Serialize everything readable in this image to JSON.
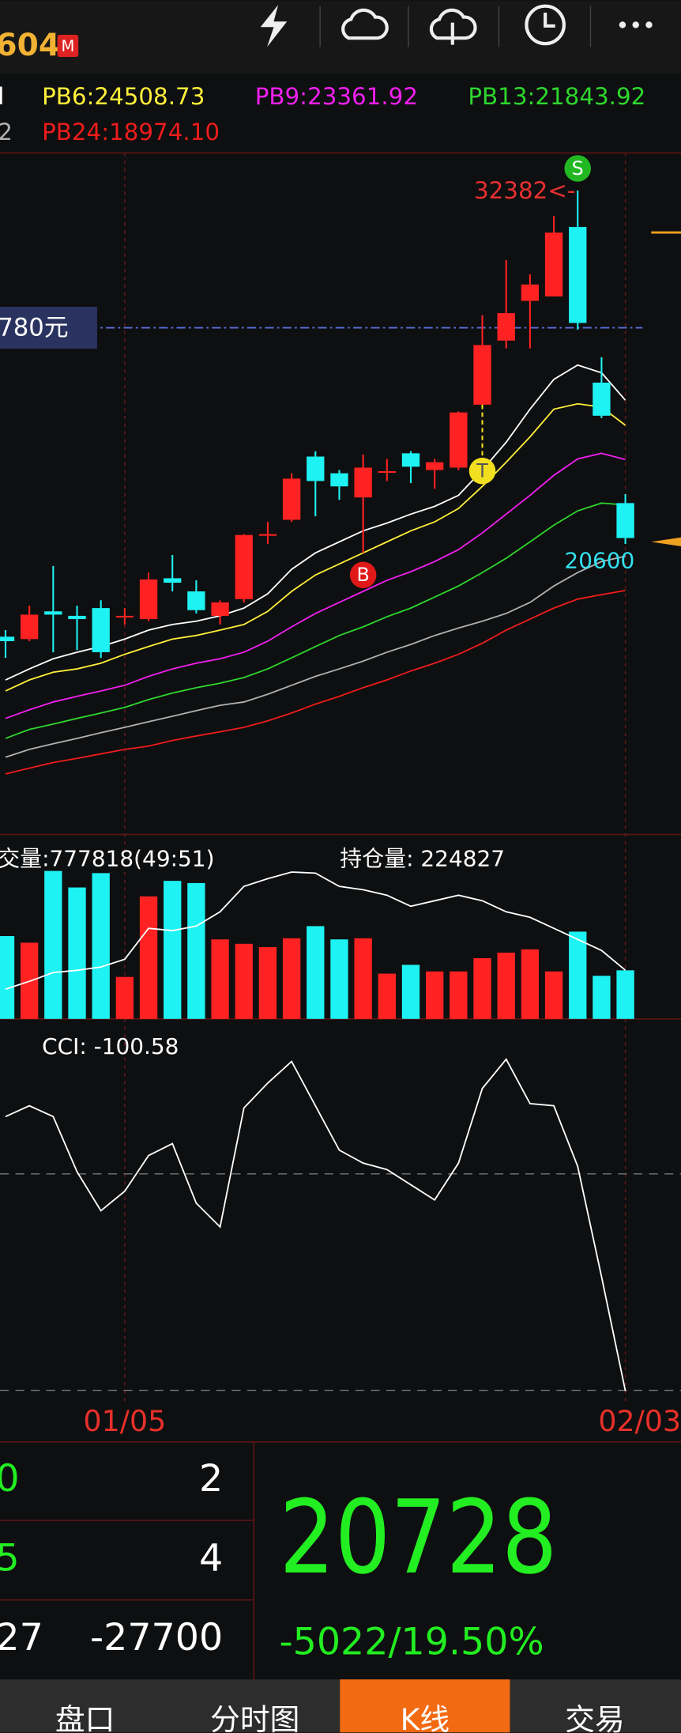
{
  "header": {
    "price_fragment": "604",
    "badge": "M"
  },
  "chart": {
    "categories": [
      null,
      null,
      null,
      null,
      null,
      "01/05",
      null,
      null,
      null,
      null,
      null,
      null,
      null,
      null,
      null,
      null,
      null,
      null,
      null,
      null,
      null,
      null,
      null,
      null,
      null,
      null,
      "02/03"
    ],
    "main": {
      "ylim": [
        10788,
        33641
      ],
      "candles": {
        "open": [
          17420,
          17340,
          18270,
          18120,
          18380,
          18100,
          18010,
          19380,
          18940,
          18120,
          18680,
          20840,
          21340,
          23460,
          22900,
          22090,
          22960,
          23570,
          23010,
          23090,
          25200,
          27350,
          28680,
          28830,
          31160,
          25940,
          21900
        ],
        "high": [
          17640,
          18460,
          19790,
          18460,
          18640,
          18380,
          19570,
          20160,
          19310,
          18640,
          20860,
          21270,
          22900,
          23640,
          23010,
          23530,
          23380,
          23640,
          23380,
          24970,
          28200,
          30050,
          29570,
          31530,
          32382,
          26790,
          22200
        ],
        "low": [
          16710,
          17270,
          16900,
          16970,
          16710,
          17830,
          17940,
          18940,
          18200,
          17830,
          18570,
          20530,
          21270,
          21460,
          22010,
          20230,
          22640,
          22570,
          22380,
          23010,
          25200,
          27090,
          27090,
          28830,
          27720,
          24750,
          20530
        ],
        "close": [
          17270,
          18160,
          18160,
          18010,
          16900,
          18120,
          19340,
          19230,
          18310,
          18570,
          20830,
          20860,
          22720,
          22640,
          22460,
          23090,
          22970,
          23120,
          23270,
          24940,
          27200,
          28270,
          29230,
          30970,
          27940,
          24830,
          20728
        ],
        "up_color": "#ff2222",
        "down_color": "#1ef2f2"
      },
      "lines": [
        {
          "label": "l",
          "color": "#ffffff",
          "values": [
            15970,
            16340,
            16680,
            16900,
            17090,
            17340,
            17640,
            17830,
            17940,
            18120,
            18380,
            18860,
            19680,
            20230,
            20600,
            20970,
            21230,
            21530,
            21790,
            22160,
            23010,
            23940,
            25050,
            26050,
            26530,
            26270,
            25350
          ]
        },
        {
          "label": "PB6:24508.73",
          "color": "#ffef3a",
          "values": [
            15600,
            15970,
            16230,
            16340,
            16530,
            16830,
            17090,
            17340,
            17460,
            17640,
            17830,
            18270,
            18940,
            19490,
            19860,
            20230,
            20600,
            20970,
            21270,
            21720,
            22460,
            23270,
            24120,
            25050,
            25230,
            25120,
            24510
          ]
        },
        {
          "label": "PB9:23361.92",
          "color": "#f020f0",
          "values": [
            14680,
            14970,
            15230,
            15420,
            15600,
            15790,
            16090,
            16340,
            16530,
            16680,
            16900,
            17270,
            17750,
            18200,
            18570,
            18940,
            19310,
            19600,
            19940,
            20340,
            20900,
            21530,
            22160,
            22830,
            23380,
            23570,
            23360
          ]
        },
        {
          "label": "PB13:21843.92",
          "color": "#2ed62e",
          "values": [
            14010,
            14310,
            14490,
            14680,
            14860,
            15050,
            15310,
            15530,
            15710,
            15860,
            16050,
            16340,
            16710,
            17090,
            17460,
            17750,
            18090,
            18380,
            18750,
            19120,
            19570,
            20050,
            20600,
            21160,
            21640,
            21900,
            21840
          ]
        },
        {
          "label": "2",
          "color": "#b0b0b0",
          "values": [
            13380,
            13640,
            13830,
            14010,
            14200,
            14380,
            14570,
            14750,
            14940,
            15120,
            15230,
            15490,
            15790,
            16090,
            16340,
            16600,
            16900,
            17160,
            17460,
            17710,
            17940,
            18200,
            18570,
            19120,
            19570,
            19940,
            20120
          ]
        },
        {
          "label": "PB24:18974.10",
          "color": "#ee1c1c",
          "values": [
            12820,
            13010,
            13200,
            13340,
            13490,
            13640,
            13750,
            13940,
            14090,
            14230,
            14380,
            14600,
            14860,
            15160,
            15420,
            15710,
            15970,
            16270,
            16530,
            16830,
            17200,
            17640,
            18010,
            18380,
            18680,
            18830,
            18970
          ]
        }
      ],
      "high_label": "32382<-",
      "signals": [
        {
          "label": "S",
          "index": 24,
          "color": "#22b822"
        },
        {
          "label": "B",
          "index": 15,
          "color": "#e01818"
        },
        {
          "label": "T",
          "index": 20,
          "color": "#f2e020"
        }
      ],
      "cost_line": {
        "label": "780元",
        "value": 27780,
        "color": "#5a6fd8"
      },
      "last_label": {
        "value": 20600,
        "color": "#33e0f0"
      }
    },
    "volume": {
      "label": "交量:777818(49:51)",
      "oi_label": "持仓量: 224827",
      "vlim": [
        0,
        2422000
      ],
      "oilim": [
        211600,
        252700
      ],
      "values": [
        1326000,
        1220000,
        2369000,
        2104000,
        2334000,
        672000,
        1962000,
        2210000,
        2175000,
        1273000,
        1202000,
        1149000,
        1291000,
        1485000,
        1273000,
        1291000,
        725000,
        866000,
        760000,
        760000,
        972000,
        1061000,
        1114000,
        760000,
        1397000,
        690000,
        777818
      ],
      "oi": [
        219700,
        221800,
        224200,
        224800,
        225700,
        227800,
        236200,
        235600,
        236800,
        240700,
        247600,
        249700,
        251500,
        251200,
        247600,
        246700,
        245200,
        242200,
        243700,
        245200,
        243700,
        240700,
        239200,
        236200,
        233200,
        230200,
        224827
      ]
    },
    "cci": {
      "label": "CCI: -100.58",
      "ylim": [
        -112,
        230
      ],
      "levels": [
        100,
        -100
      ],
      "values": [
        153,
        163,
        153,
        102,
        66,
        84,
        117,
        128,
        73,
        51,
        161,
        184,
        204,
        163,
        122,
        110,
        104,
        90,
        76,
        110,
        179,
        206,
        165,
        163,
        107,
        5,
        -100.58
      ]
    }
  },
  "quote": {
    "rows": [
      [
        0,
        2
      ],
      [
        5,
        4
      ],
      [
        27,
        -27700
      ]
    ],
    "price": 20728,
    "change": "-5022/19.50%"
  },
  "tabs": {
    "items": [
      "盘口",
      "分时图",
      "K线",
      "交易"
    ],
    "active": 2
  }
}
